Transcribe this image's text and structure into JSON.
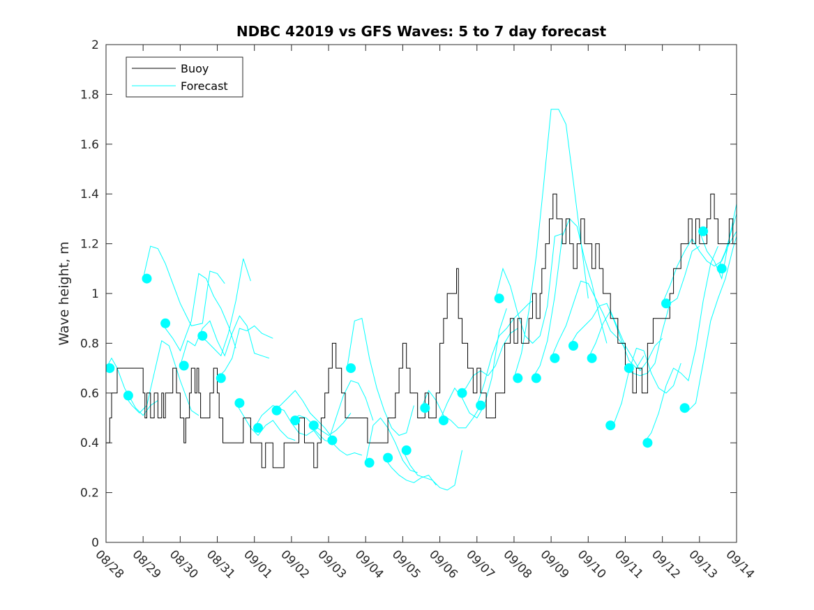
{
  "chart_data": {
    "type": "line",
    "title": "NDBC 42019 vs GFS Waves: 5 to 7 day forecast",
    "xlabel": "",
    "ylabel": "Wave height, m",
    "ylim": [
      0,
      2
    ],
    "yticks": [
      0,
      0.2,
      0.4,
      0.6,
      0.8,
      1,
      1.2,
      1.4,
      1.6,
      1.8,
      2
    ],
    "ytick_labels": [
      "0",
      "0.2",
      "0.4",
      "0.6",
      "0.8",
      "1",
      "1.2",
      "1.4",
      "1.6",
      "1.8",
      "2"
    ],
    "x_unit": "days since 08/28",
    "xlim": [
      0,
      17
    ],
    "xtick_labels": [
      "08/28",
      "08/29",
      "08/30",
      "08/31",
      "09/01",
      "09/02",
      "09/03",
      "09/04",
      "09/05",
      "09/06",
      "09/07",
      "09/08",
      "09/09",
      "09/10",
      "09/11",
      "09/12",
      "09/13",
      "09/14"
    ],
    "grid": false,
    "legend": {
      "position": "top-left",
      "entries": [
        {
          "label": "Buoy",
          "color": "#000000"
        },
        {
          "label": "Forecast",
          "color": "#00ffff"
        }
      ]
    },
    "colors": {
      "buoy": "#000000",
      "forecast": "#00ffff",
      "axis": "#262626"
    },
    "buoy": {
      "name": "Buoy",
      "step": true,
      "x": [
        0,
        0.1,
        0.15,
        0.3,
        0.4,
        0.5,
        1.0,
        1.05,
        1.1,
        1.2,
        1.3,
        1.4,
        1.5,
        1.55,
        1.6,
        1.7,
        1.8,
        1.9,
        2.0,
        2.1,
        2.15,
        2.25,
        2.3,
        2.4,
        2.45,
        2.5,
        2.55,
        2.7,
        2.8,
        2.9,
        3.0,
        3.05,
        3.15,
        3.3,
        3.4,
        3.55,
        3.7,
        3.9,
        4.0,
        4.1,
        4.2,
        4.3,
        4.4,
        4.5,
        4.7,
        4.8,
        4.95,
        5.05,
        5.2,
        5.35,
        5.5,
        5.6,
        5.7,
        5.8,
        5.9,
        6.0,
        6.1,
        6.2,
        6.35,
        6.45,
        6.6,
        6.75,
        6.9,
        7.05,
        7.15,
        7.25,
        7.5,
        7.6,
        7.7,
        7.8,
        7.9,
        8.0,
        8.1,
        8.2,
        8.4,
        8.5,
        8.6,
        8.7,
        8.8,
        8.9,
        9.0,
        9.1,
        9.2,
        9.3,
        9.45,
        9.5,
        9.6,
        9.75,
        9.8,
        9.9,
        10.0,
        10.1,
        10.25,
        10.4,
        10.5,
        10.6,
        10.75,
        10.9,
        11.0,
        11.1,
        11.2,
        11.3,
        11.4,
        11.5,
        11.6,
        11.7,
        11.75,
        11.85,
        11.95,
        12.05,
        12.15,
        12.3,
        12.4,
        12.5,
        12.6,
        12.7,
        12.8,
        12.9,
        13.0,
        13.1,
        13.2,
        13.3,
        13.4,
        13.5,
        13.6,
        13.7,
        13.8,
        13.9,
        14.0,
        14.1,
        14.2,
        14.3,
        14.45,
        14.6,
        14.75,
        14.9,
        15.0,
        15.1,
        15.2,
        15.3,
        15.4,
        15.5,
        15.6,
        15.7,
        15.8,
        15.9,
        16.0,
        16.1,
        16.2,
        16.3,
        16.4,
        16.5,
        16.6,
        16.7,
        16.8,
        16.9,
        17.0
      ],
      "values": [
        0.4,
        0.5,
        0.6,
        0.7,
        0.7,
        0.7,
        0.6,
        0.5,
        0.6,
        0.5,
        0.6,
        0.5,
        0.6,
        0.5,
        0.6,
        0.6,
        0.7,
        0.6,
        0.5,
        0.4,
        0.5,
        0.6,
        0.7,
        0.6,
        0.7,
        0.6,
        0.5,
        0.5,
        0.6,
        0.7,
        0.6,
        0.5,
        0.4,
        0.4,
        0.4,
        0.4,
        0.5,
        0.4,
        0.4,
        0.4,
        0.3,
        0.4,
        0.4,
        0.3,
        0.3,
        0.4,
        0.4,
        0.4,
        0.5,
        0.4,
        0.4,
        0.3,
        0.4,
        0.5,
        0.6,
        0.7,
        0.8,
        0.7,
        0.6,
        0.5,
        0.5,
        0.5,
        0.5,
        0.4,
        0.4,
        0.4,
        0.4,
        0.5,
        0.5,
        0.6,
        0.7,
        0.8,
        0.7,
        0.6,
        0.5,
        0.5,
        0.6,
        0.5,
        0.5,
        0.6,
        0.8,
        0.9,
        1.0,
        1.0,
        1.1,
        0.9,
        0.8,
        0.7,
        0.7,
        0.6,
        0.7,
        0.6,
        0.5,
        0.5,
        0.6,
        0.6,
        0.8,
        0.9,
        0.8,
        0.9,
        0.8,
        0.8,
        0.9,
        1.0,
        0.9,
        1.0,
        1.1,
        1.2,
        1.3,
        1.4,
        1.3,
        1.2,
        1.3,
        1.2,
        1.1,
        1.2,
        1.3,
        1.2,
        1.2,
        1.1,
        1.2,
        1.1,
        1.0,
        1.0,
        0.9,
        0.9,
        0.8,
        0.8,
        0.7,
        0.7,
        0.6,
        0.7,
        0.6,
        0.8,
        0.9,
        0.9,
        0.9,
        0.9,
        1.0,
        1.1,
        1.1,
        1.2,
        1.2,
        1.3,
        1.2,
        1.3,
        1.2,
        1.2,
        1.3,
        1.4,
        1.3,
        1.2,
        1.2,
        1.2,
        1.3,
        1.2,
        1.2
      ]
    },
    "forecasts": [
      {
        "name": "Forecast",
        "x": [
          0,
          0.15,
          0.3,
          0.5,
          0.8,
          1.0,
          1.2,
          1.4
        ],
        "values": [
          0.7,
          0.74,
          0.7,
          0.62,
          0.54,
          0.51,
          0.55,
          0.57
        ]
      },
      {
        "name": "Forecast",
        "x": [
          0.5,
          0.7,
          0.9,
          1.1,
          1.3,
          1.5,
          1.7,
          2.0,
          2.3,
          2.5
        ],
        "values": [
          0.59,
          0.55,
          0.52,
          0.55,
          0.68,
          0.81,
          0.79,
          0.65,
          0.53,
          0.51
        ]
      },
      {
        "name": "Forecast",
        "x": [
          1.0,
          1.2,
          1.4,
          1.6,
          1.8,
          2.0,
          2.3,
          2.6,
          2.8,
          3.0,
          3.2
        ],
        "values": [
          1.06,
          1.19,
          1.18,
          1.12,
          1.04,
          0.96,
          0.87,
          0.88,
          1.09,
          1.08,
          1.04
        ]
      },
      {
        "name": "Forecast",
        "x": [
          1.5,
          1.8,
          2.0,
          2.3,
          2.5,
          2.7,
          2.9,
          3.1,
          3.3,
          3.5
        ],
        "values": [
          0.88,
          0.82,
          0.77,
          0.89,
          1.08,
          1.06,
          0.99,
          0.94,
          0.87,
          0.78
        ]
      },
      {
        "name": "Forecast",
        "x": [
          2.0,
          2.2,
          2.4,
          2.6,
          2.8,
          3.0,
          3.2,
          3.4,
          3.6,
          3.8,
          4.0,
          4.2,
          4.4
        ],
        "values": [
          0.71,
          0.81,
          0.79,
          0.86,
          0.89,
          0.81,
          0.75,
          0.84,
          0.91,
          0.87,
          0.76,
          0.75,
          0.74
        ]
      },
      {
        "name": "Forecast",
        "x": [
          2.5,
          2.7,
          2.9,
          3.1,
          3.3,
          3.5,
          3.7,
          3.9
        ],
        "values": [
          0.83,
          0.81,
          0.78,
          0.75,
          0.84,
          0.97,
          1.14,
          1.05
        ]
      },
      {
        "name": "Forecast",
        "x": [
          3.0,
          3.2,
          3.4,
          3.6,
          3.8,
          4.0,
          4.2,
          4.5
        ],
        "values": [
          0.66,
          0.69,
          0.74,
          0.86,
          0.85,
          0.87,
          0.84,
          0.82
        ]
      },
      {
        "name": "Forecast",
        "x": [
          3.5,
          3.7,
          3.9,
          4.1,
          4.3,
          4.5,
          4.7,
          4.9,
          5.1
        ],
        "values": [
          0.56,
          0.51,
          0.46,
          0.43,
          0.47,
          0.49,
          0.45,
          0.42,
          0.41
        ]
      },
      {
        "name": "Forecast",
        "x": [
          4.0,
          4.2,
          4.5,
          4.8,
          5.0,
          5.2,
          5.4,
          5.6,
          5.8
        ],
        "values": [
          0.46,
          0.51,
          0.55,
          0.53,
          0.48,
          0.44,
          0.43,
          0.45,
          0.41
        ]
      },
      {
        "name": "Forecast",
        "x": [
          4.5,
          4.7,
          4.9,
          5.1,
          5.3,
          5.5,
          5.7,
          5.9,
          6.1
        ],
        "values": [
          0.53,
          0.55,
          0.58,
          0.61,
          0.57,
          0.52,
          0.49,
          0.46,
          0.42
        ]
      },
      {
        "name": "Forecast",
        "x": [
          5.0,
          5.2,
          5.4,
          5.6,
          5.8,
          6.0,
          6.2,
          6.4,
          6.6
        ],
        "values": [
          0.49,
          0.51,
          0.5,
          0.47,
          0.45,
          0.43,
          0.45,
          0.48,
          0.52
        ]
      },
      {
        "name": "Forecast",
        "x": [
          5.5,
          5.7,
          5.9,
          6.1,
          6.3,
          6.5,
          6.7,
          6.9
        ],
        "values": [
          0.47,
          0.44,
          0.41,
          0.4,
          0.37,
          0.35,
          0.36,
          0.35
        ]
      },
      {
        "name": "Forecast",
        "x": [
          6.0,
          6.2,
          6.4,
          6.6,
          6.8,
          7.0,
          7.2
        ],
        "values": [
          0.41,
          0.5,
          0.59,
          0.65,
          0.64,
          0.58,
          0.49
        ]
      },
      {
        "name": "Forecast",
        "x": [
          6.5,
          6.7,
          6.9,
          7.1,
          7.3,
          7.5,
          7.7,
          7.9,
          8.1,
          8.3
        ],
        "values": [
          0.7,
          0.89,
          0.9,
          0.74,
          0.62,
          0.53,
          0.46,
          0.43,
          0.44,
          0.55
        ]
      },
      {
        "name": "Forecast",
        "x": [
          7.0,
          7.2,
          7.4,
          7.6,
          7.8,
          8.0,
          8.2,
          8.4
        ],
        "values": [
          0.32,
          0.47,
          0.5,
          0.46,
          0.4,
          0.33,
          0.29,
          0.28
        ]
      },
      {
        "name": "Forecast",
        "x": [
          7.5,
          7.7,
          7.9,
          8.1,
          8.3,
          8.5,
          8.7,
          8.9
        ],
        "values": [
          0.34,
          0.3,
          0.27,
          0.25,
          0.24,
          0.26,
          0.27,
          0.23
        ]
      },
      {
        "name": "Forecast",
        "x": [
          8.0,
          8.2,
          8.4,
          8.6,
          8.8,
          9.0,
          9.2,
          9.4,
          9.6
        ],
        "values": [
          0.37,
          0.31,
          0.27,
          0.26,
          0.25,
          0.22,
          0.21,
          0.23,
          0.37
        ]
      },
      {
        "name": "Forecast",
        "x": [
          8.5,
          8.7,
          8.9,
          9.1,
          9.3,
          9.5,
          9.7,
          9.9,
          10.1
        ],
        "values": [
          0.54,
          0.61,
          0.57,
          0.51,
          0.49,
          0.46,
          0.46,
          0.5,
          0.55
        ]
      },
      {
        "name": "Forecast",
        "x": [
          9.0,
          9.2,
          9.4,
          9.6,
          9.8,
          10.0,
          10.2,
          10.4,
          10.6,
          10.8
        ],
        "values": [
          0.49,
          0.56,
          0.62,
          0.58,
          0.52,
          0.5,
          0.55,
          0.66,
          0.85,
          0.94
        ]
      },
      {
        "name": "Forecast",
        "x": [
          9.5,
          9.7,
          9.9,
          10.1,
          10.3,
          10.5,
          10.7,
          10.9,
          11.1
        ],
        "values": [
          0.6,
          0.62,
          0.67,
          0.69,
          0.67,
          0.71,
          0.79,
          0.84,
          0.86
        ]
      },
      {
        "name": "Forecast",
        "x": [
          10.0,
          10.2,
          10.4,
          10.6,
          10.8,
          11.0,
          11.2,
          11.4,
          11.5
        ],
        "values": [
          0.55,
          0.64,
          0.75,
          0.83,
          0.86,
          0.9,
          0.93,
          0.96,
          0.97
        ]
      },
      {
        "name": "Forecast",
        "x": [
          10.5,
          10.7,
          10.9,
          11.1,
          11.3,
          11.5,
          11.7,
          11.9,
          12.1,
          12.3
        ],
        "values": [
          0.98,
          1.1,
          1.03,
          0.92,
          0.83,
          0.8,
          0.83,
          0.95,
          1.23,
          1.24
        ]
      },
      {
        "name": "Forecast",
        "x": [
          11.0,
          11.2,
          11.4,
          11.6,
          11.8,
          12.0,
          12.2,
          12.4,
          12.6,
          12.8,
          13.0
        ],
        "values": [
          0.66,
          0.76,
          0.93,
          1.15,
          1.44,
          1.74,
          1.74,
          1.68,
          1.45,
          1.21,
          0.98
        ]
      },
      {
        "name": "Forecast",
        "x": [
          11.5,
          11.7,
          11.9,
          12.1,
          12.3,
          12.5,
          12.7,
          12.9,
          13.1,
          13.3,
          13.5
        ],
        "values": [
          0.66,
          0.71,
          0.81,
          0.99,
          1.23,
          1.3,
          1.27,
          1.14,
          1.04,
          0.91,
          0.8
        ]
      },
      {
        "name": "Forecast",
        "x": [
          12.0,
          12.2,
          12.4,
          12.6,
          12.8,
          13.0,
          13.2,
          13.4,
          13.6,
          13.8,
          14.0
        ],
        "values": [
          0.74,
          0.81,
          0.87,
          0.96,
          1.05,
          1.04,
          0.98,
          0.92,
          0.85,
          0.82,
          0.78
        ]
      },
      {
        "name": "Forecast",
        "x": [
          12.5,
          12.7,
          12.9,
          13.1,
          13.3,
          13.5,
          13.7,
          13.9,
          14.1,
          14.3,
          14.5
        ],
        "values": [
          0.79,
          0.84,
          0.87,
          0.9,
          0.95,
          0.96,
          0.89,
          0.81,
          0.73,
          0.7,
          0.75
        ]
      },
      {
        "name": "Forecast",
        "x": [
          13.0,
          13.2,
          13.4,
          13.6,
          13.8,
          14.0,
          14.2,
          14.4,
          14.6,
          14.8,
          15.0
        ],
        "values": [
          0.74,
          0.8,
          0.88,
          0.93,
          0.86,
          0.79,
          0.74,
          0.69,
          0.73,
          0.79,
          0.82
        ]
      },
      {
        "name": "Forecast",
        "x": [
          13.5,
          13.7,
          13.9,
          14.1,
          14.3,
          14.5,
          14.7,
          14.9,
          15.1,
          15.3,
          15.5
        ],
        "values": [
          0.47,
          0.48,
          0.56,
          0.69,
          0.78,
          0.77,
          0.68,
          0.62,
          0.6,
          0.63,
          0.72
        ]
      },
      {
        "name": "Forecast",
        "x": [
          14.0,
          14.2,
          14.4,
          14.6,
          14.8,
          15.0,
          15.2,
          15.4,
          15.6,
          15.8,
          16.0
        ],
        "values": [
          0.7,
          0.68,
          0.67,
          0.68,
          0.72,
          0.85,
          0.96,
          0.98,
          1.07,
          1.17,
          1.19
        ]
      },
      {
        "name": "Forecast",
        "x": [
          14.5,
          14.7,
          14.9,
          15.1,
          15.3,
          15.5,
          15.7,
          15.9,
          16.1,
          16.3,
          16.5
        ],
        "values": [
          0.4,
          0.44,
          0.52,
          0.63,
          0.7,
          0.68,
          0.65,
          0.78,
          0.97,
          1.12,
          1.19
        ]
      },
      {
        "name": "Forecast",
        "x": [
          15.0,
          15.2,
          15.4,
          15.6,
          15.8,
          16.0,
          16.2,
          16.4,
          16.6,
          16.8,
          17.0
        ],
        "values": [
          0.96,
          1.03,
          1.11,
          1.17,
          1.22,
          1.17,
          1.13,
          1.11,
          1.13,
          1.2,
          1.25
        ]
      },
      {
        "name": "Forecast",
        "x": [
          15.5,
          15.7,
          15.9,
          16.1,
          16.3,
          16.5,
          16.7,
          16.9,
          17.0
        ],
        "values": [
          0.54,
          0.53,
          0.56,
          0.72,
          0.89,
          0.98,
          1.06,
          1.18,
          1.23
        ]
      },
      {
        "name": "Forecast",
        "x": [
          16.0,
          16.2,
          16.4,
          16.6,
          16.8,
          17.0
        ],
        "values": [
          1.25,
          1.17,
          1.13,
          1.06,
          1.22,
          1.36
        ]
      },
      {
        "name": "Forecast",
        "x": [
          16.5,
          16.7,
          16.9,
          17.0
        ],
        "values": [
          1.1,
          1.17,
          1.27,
          1.32
        ]
      }
    ],
    "forecast_start_markers": {
      "x": [
        0.1,
        0.6,
        1.1,
        1.6,
        2.1,
        2.6,
        3.1,
        3.6,
        4.1,
        4.6,
        5.1,
        5.6,
        6.1,
        6.6,
        7.1,
        7.6,
        8.1,
        8.6,
        9.1,
        9.6,
        10.1,
        10.6,
        11.1,
        11.6,
        12.1,
        12.6,
        13.1,
        13.6,
        14.1,
        14.6,
        15.1,
        15.6,
        16.1,
        16.6
      ],
      "values": [
        0.7,
        0.59,
        1.06,
        0.88,
        0.71,
        0.83,
        0.66,
        0.56,
        0.46,
        0.53,
        0.49,
        0.47,
        0.41,
        0.7,
        0.32,
        0.34,
        0.37,
        0.54,
        0.49,
        0.6,
        0.55,
        0.98,
        0.66,
        0.66,
        0.74,
        0.79,
        0.74,
        0.47,
        0.7,
        0.4,
        0.96,
        0.54,
        1.25,
        1.1
      ]
    }
  }
}
